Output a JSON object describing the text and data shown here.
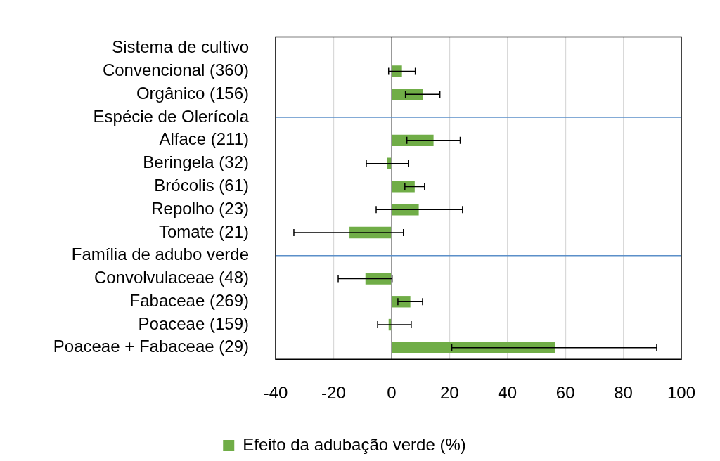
{
  "chart_data": {
    "type": "bar",
    "orientation": "horizontal",
    "categories": [
      "Sistema de cultivo",
      "Convencional (360)",
      "Orgânico (156)",
      "Espécie de Olerícola",
      "Alface (211)",
      "Beringela (32)",
      "Brócolis (61)",
      "Repolho (23)",
      "Tomate (21)",
      "Família de adubo verde",
      "Convolvulaceae (48)",
      "Fabaceae (269)",
      "Poaceae (159)",
      "Poaceae + Fabaceae (29)"
    ],
    "series": [
      {
        "name": "Efeito da adubação verde (%)",
        "color": "#70ad47",
        "values": [
          null,
          3.6,
          10.9,
          null,
          14.5,
          -1.5,
          8,
          9.4,
          -14.5,
          null,
          -9,
          6.5,
          -1,
          56.4
        ],
        "errors": [
          null,
          [
            -1,
            8.2
          ],
          [
            4.8,
            16.7
          ],
          null,
          [
            5.3,
            23.7
          ],
          [
            -8.7,
            5.8
          ],
          [
            4.6,
            11.4
          ],
          [
            -5.3,
            24.5
          ],
          [
            -33.7,
            4.1
          ],
          null,
          [
            -18.4,
            0.2
          ],
          [
            2.2,
            10.7
          ],
          [
            -4.8,
            6.8
          ],
          [
            20.8,
            91.5
          ]
        ]
      }
    ],
    "xlim": [
      -40,
      100
    ],
    "xticks": [
      -40,
      -20,
      0,
      20,
      40,
      60,
      80,
      100
    ],
    "grid": "x",
    "legend": "bottom",
    "ref_lines": [
      {
        "axis": "y",
        "value": "Espécie de Olerícola",
        "color": "#5b8fc9"
      },
      {
        "axis": "y",
        "value": "Família de adubo verde",
        "color": "#5b8fc9"
      }
    ]
  }
}
